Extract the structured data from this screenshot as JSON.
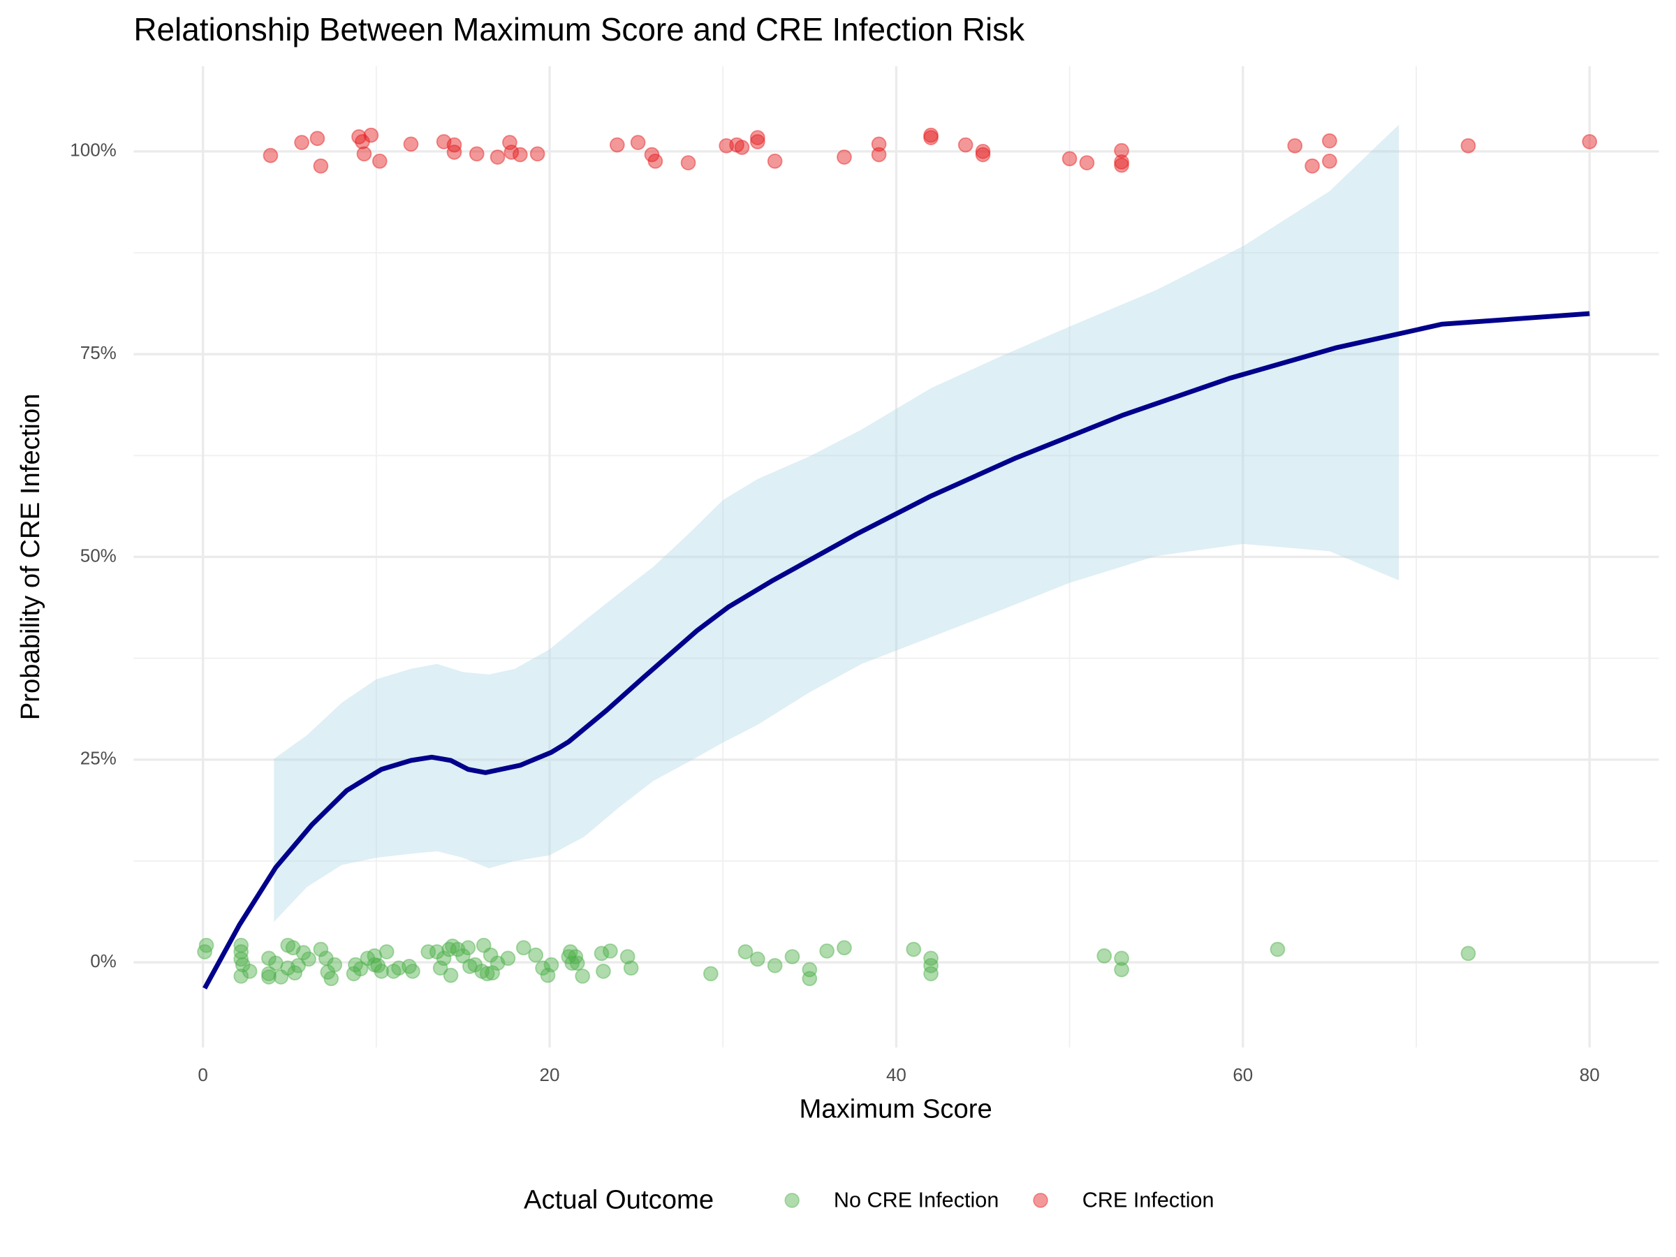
{
  "chart_data": {
    "type": "scatter",
    "title": "Relationship Between Maximum Score and CRE Infection Risk",
    "x_label": "Maximum Score",
    "y_label": "Probability of CRE Infection",
    "xlim": [
      -4,
      84
    ],
    "ylim": [
      -10.5,
      110.5
    ],
    "xticks": [
      0,
      20,
      40,
      60,
      80
    ],
    "yticks": [
      {
        "value": 0,
        "label": "0%"
      },
      {
        "value": 25,
        "label": "25%"
      },
      {
        "value": 50,
        "label": "50%"
      },
      {
        "value": 75,
        "label": "75%"
      },
      {
        "value": 100,
        "label": "100%"
      }
    ],
    "grid": true,
    "legend_title": "Actual Outcome",
    "legend_position": "bottom",
    "series": [
      {
        "name": "No CRE Infection",
        "color": "#4DAF4A",
        "x": [
          0.1,
          0.2,
          2.2,
          2.2,
          2.2,
          2.3,
          2.2,
          2.7,
          3.8,
          3.8,
          3.8,
          4.2,
          4.5,
          4.9,
          4.9,
          5.2,
          5.3,
          5.5,
          5.8,
          6.1,
          6.8,
          7.1,
          7.2,
          7.4,
          7.6,
          8.7,
          8.8,
          9.1,
          9.5,
          9.9,
          9.9,
          10.1,
          10.3,
          10.6,
          11.0,
          11.3,
          11.9,
          12.1,
          13.0,
          13.5,
          13.7,
          13.9,
          14.2,
          14.3,
          14.4,
          14.7,
          15.0,
          15.3,
          15.4,
          15.7,
          16.1,
          16.2,
          16.4,
          16.6,
          16.7,
          17.0,
          17.6,
          18.5,
          19.2,
          19.6,
          19.9,
          20.1,
          21.1,
          21.2,
          21.3,
          21.5,
          21.6,
          21.9,
          23.0,
          23.1,
          23.5,
          24.5,
          24.7,
          29.3,
          31.3,
          32.0,
          33.0,
          34.0,
          35.0,
          35.0,
          36.0,
          37.0,
          41.0,
          42.0,
          42.0,
          42.0,
          52.0,
          53.0,
          53.0,
          62.0,
          73.0
        ],
        "values": [
          1.3,
          2.1,
          2.1,
          1.3,
          0.4,
          -0.3,
          -1.7,
          -1.1,
          0.5,
          -1.4,
          -1.8,
          -0.1,
          -1.8,
          2.1,
          -0.7,
          1.8,
          -1.3,
          -0.4,
          1.2,
          0.4,
          1.6,
          0.5,
          -1.2,
          -2.0,
          -0.3,
          -1.4,
          -0.3,
          -0.8,
          0.5,
          0.8,
          -0.3,
          -0.4,
          -1.1,
          1.3,
          -1.1,
          -0.7,
          -0.5,
          -1.1,
          1.3,
          1.3,
          -0.7,
          0.5,
          1.6,
          -1.6,
          2.0,
          1.6,
          0.8,
          1.8,
          -0.5,
          -0.3,
          -1.1,
          2.1,
          -1.4,
          0.9,
          -1.3,
          -0.1,
          0.5,
          1.8,
          0.9,
          -0.7,
          -1.6,
          -0.3,
          0.7,
          1.3,
          -0.1,
          0.7,
          -0.1,
          -1.7,
          1.1,
          -1.1,
          1.4,
          0.7,
          -0.7,
          -1.4,
          1.3,
          0.4,
          -0.4,
          0.7,
          -0.9,
          -2.0,
          1.4,
          1.8,
          1.6,
          0.5,
          -0.4,
          -1.4,
          0.8,
          0.5,
          -0.9,
          1.6,
          1.1
        ]
      },
      {
        "name": "CRE Infection",
        "color": "#E41A1C",
        "x": [
          3.9,
          5.7,
          6.6,
          6.8,
          9.0,
          9.2,
          9.7,
          9.3,
          10.2,
          12.0,
          13.9,
          14.5,
          14.5,
          15.8,
          17.0,
          17.7,
          17.8,
          18.3,
          19.3,
          23.9,
          25.1,
          25.9,
          26.1,
          28.0,
          30.2,
          30.8,
          31.1,
          32.0,
          32.0,
          33.0,
          37.0,
          39.0,
          39.0,
          42.0,
          42.0,
          44.0,
          45.0,
          45.0,
          50.0,
          51.0,
          53.0,
          53.0,
          53.0,
          63.0,
          64.0,
          65.0,
          65.0,
          73.0,
          80.0
        ],
        "values": [
          99.5,
          101.1,
          101.6,
          98.2,
          101.8,
          101.2,
          102.0,
          99.7,
          98.8,
          100.9,
          101.2,
          100.8,
          99.9,
          99.7,
          99.3,
          101.1,
          99.9,
          99.6,
          99.7,
          100.8,
          101.1,
          99.6,
          98.8,
          98.6,
          100.7,
          100.8,
          100.5,
          101.7,
          101.2,
          98.8,
          99.3,
          100.9,
          99.6,
          102.0,
          101.7,
          100.8,
          100.0,
          99.6,
          99.1,
          98.6,
          100.1,
          98.7,
          98.3,
          100.7,
          98.2,
          101.3,
          98.8,
          100.7,
          101.2
        ]
      }
    ],
    "fit": {
      "color": "#00008B",
      "x": [
        0.1,
        2.1,
        4.2,
        6.3,
        8.3,
        10.3,
        12.0,
        13.2,
        14.3,
        15.3,
        16.3,
        18.3,
        20.1,
        21.1,
        23.3,
        25.4,
        28.5,
        30.3,
        32.8,
        37.7,
        42.0,
        46.9,
        53.1,
        59.2,
        65.4,
        71.5,
        80.0
      ],
      "values": [
        -3.2,
        4.6,
        11.7,
        17.0,
        21.2,
        23.8,
        24.9,
        25.3,
        24.9,
        23.8,
        23.4,
        24.3,
        25.9,
        27.2,
        31.1,
        35.1,
        40.9,
        43.8,
        47.0,
        52.8,
        57.5,
        62.2,
        67.5,
        72.0,
        75.8,
        78.7,
        80.0
      ]
    },
    "ribbon": {
      "color": "#ADD8E6",
      "x": [
        4.1,
        6,
        8,
        10,
        12,
        13.5,
        15,
        16.5,
        18,
        20,
        22,
        24,
        26,
        28,
        30,
        32,
        35,
        38,
        42,
        46,
        50,
        55,
        60,
        65,
        69
      ],
      "upper": [
        25.1,
        28.0,
        32.0,
        34.9,
        36.2,
        36.8,
        35.8,
        35.5,
        36.2,
        38.6,
        42.1,
        45.5,
        48.8,
        52.8,
        57.0,
        59.6,
        62.4,
        65.7,
        70.8,
        74.7,
        78.4,
        82.9,
        88.3,
        95.1,
        103.3
      ],
      "lower": [
        5.0,
        9.3,
        12.0,
        12.9,
        13.4,
        13.7,
        12.9,
        11.6,
        12.5,
        13.2,
        15.5,
        19.1,
        22.4,
        24.7,
        27.1,
        29.3,
        33.3,
        36.8,
        40.1,
        43.4,
        46.8,
        50.1,
        51.6,
        50.7,
        47.1
      ]
    }
  }
}
